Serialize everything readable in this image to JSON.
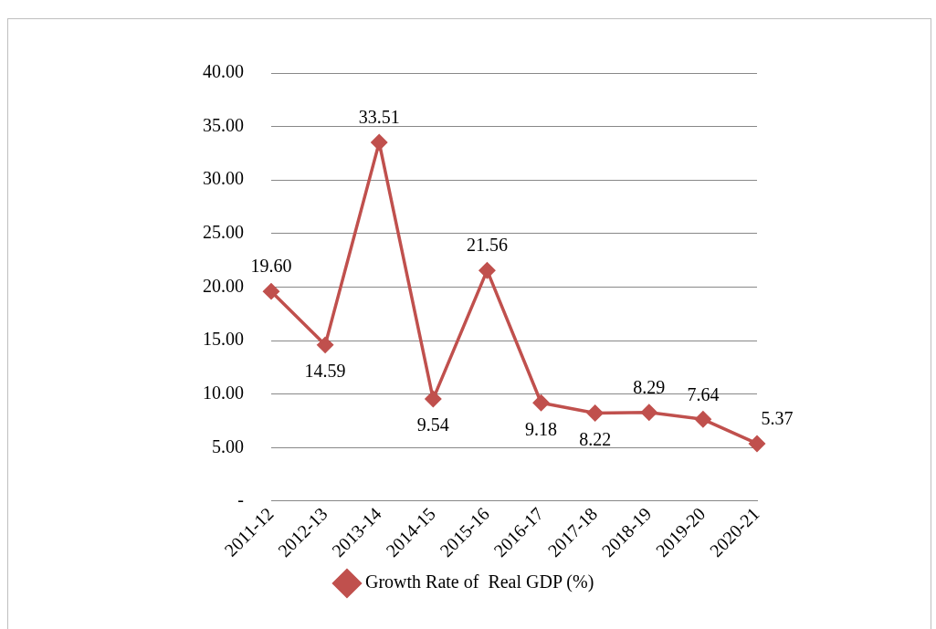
{
  "chart_data": {
    "type": "line",
    "categories": [
      "2011-12",
      "2012-13",
      "2013-14",
      "2014-15",
      "2015-16",
      "2016-17",
      "2017-18",
      "2018-19",
      "2019-20",
      "2020-21"
    ],
    "series": [
      {
        "name": "Growth Rate of  Real GDP (%)",
        "color": "#c0504d",
        "values": [
          19.6,
          14.59,
          33.51,
          9.54,
          21.56,
          9.18,
          8.22,
          8.29,
          7.64,
          5.37
        ],
        "value_labels": [
          "19.60",
          "14.59",
          "33.51",
          "9.54",
          "21.56",
          "9.18",
          "8.22",
          "8.29",
          "7.64",
          "5.37"
        ]
      }
    ],
    "ylim": [
      0,
      40
    ],
    "yticks": [
      {
        "value": 0,
        "label": "-"
      },
      {
        "value": 5,
        "label": "5.00"
      },
      {
        "value": 10,
        "label": "10.00"
      },
      {
        "value": 15,
        "label": "15.00"
      },
      {
        "value": 20,
        "label": "20.00"
      },
      {
        "value": 25,
        "label": "25.00"
      },
      {
        "value": 30,
        "label": "30.00"
      },
      {
        "value": 35,
        "label": "35.00"
      },
      {
        "value": 40,
        "label": "40.00"
      }
    ],
    "grid": "y",
    "legend": "bottom",
    "marker": "diamond",
    "line_style": "solid"
  }
}
